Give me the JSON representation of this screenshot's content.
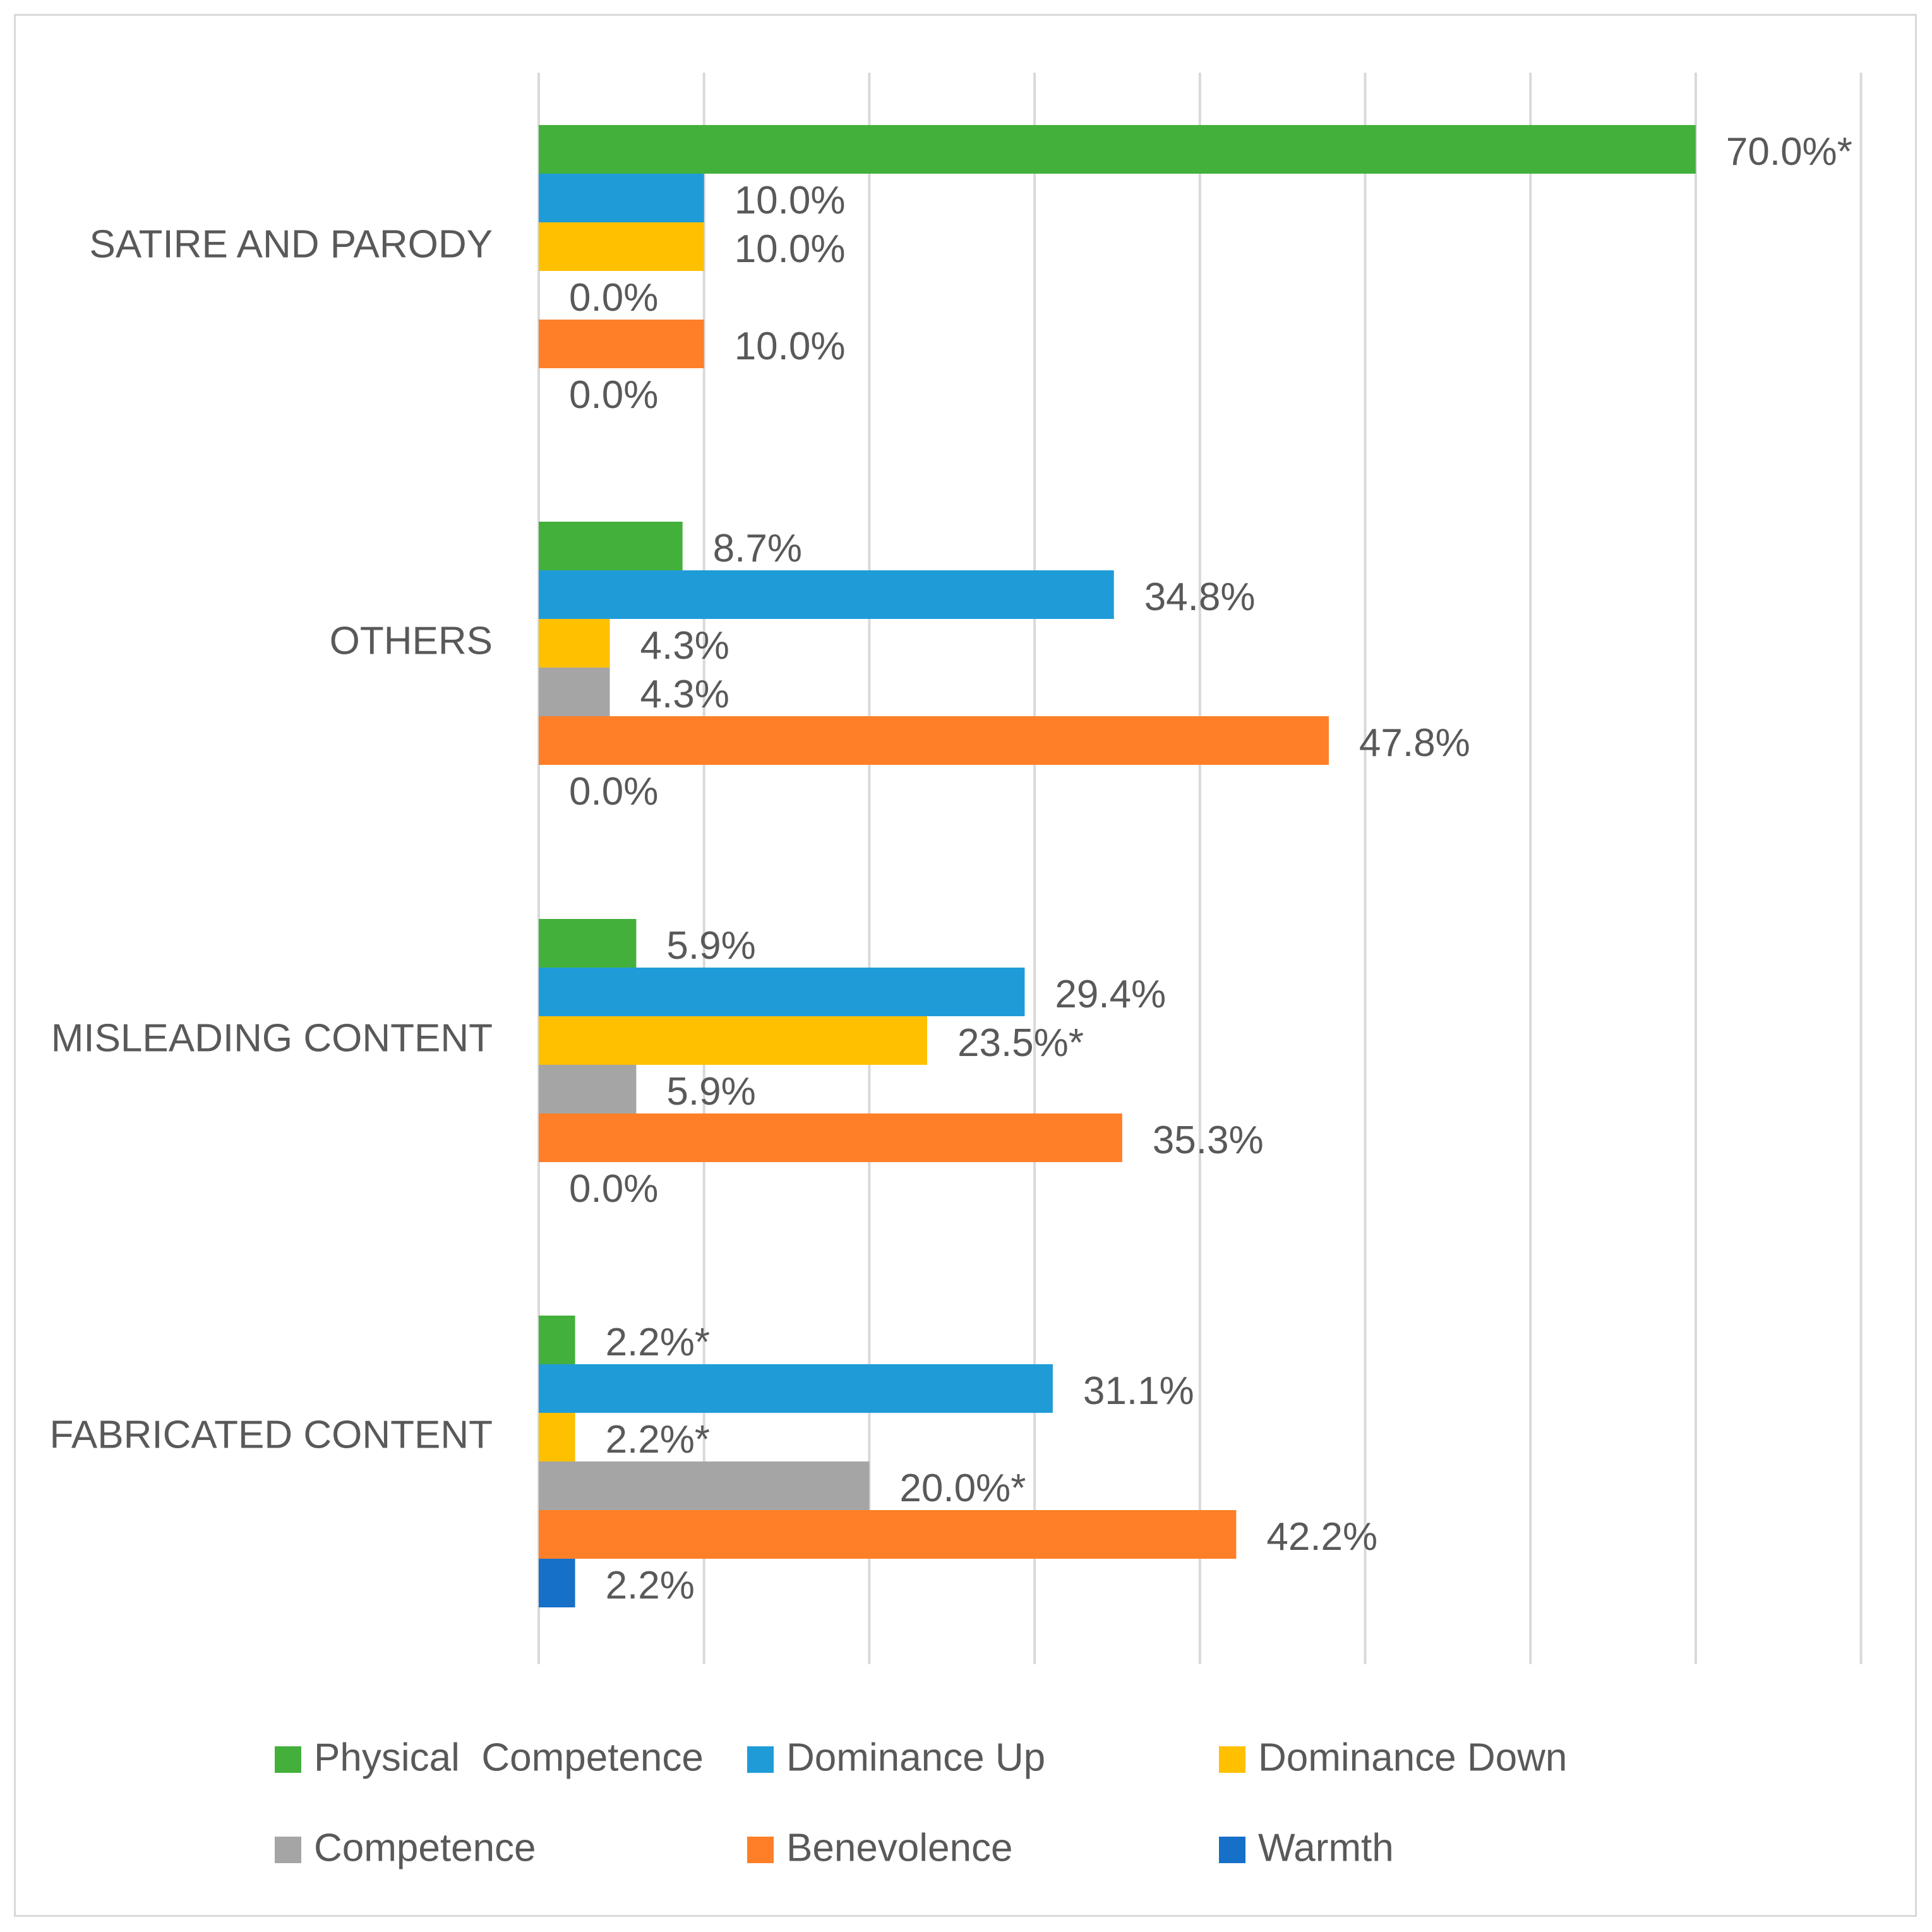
{
  "chart_data": {
    "type": "bar",
    "orientation": "horizontal",
    "categories": [
      "SATIRE AND PARODY",
      "OTHERS",
      "MISLEADING CONTENT",
      "FABRICATED CONTENT"
    ],
    "xlim": [
      0,
      80
    ],
    "grid": true,
    "legend_position": "bottom",
    "series": [
      {
        "name": "Physical  Competence",
        "color": "#43b03c",
        "values": [
          70.0,
          8.7,
          5.9,
          2.2
        ],
        "labels": [
          "70.0%*",
          "8.7%",
          "5.9%",
          "2.2%*"
        ]
      },
      {
        "name": "Dominance Up",
        "color": "#1f9cd8",
        "values": [
          10.0,
          34.8,
          29.4,
          31.1
        ],
        "labels": [
          "10.0%",
          "34.8%",
          "29.4%",
          "31.1%"
        ]
      },
      {
        "name": "Dominance Down",
        "color": "#ffc000",
        "values": [
          10.0,
          4.3,
          23.5,
          2.2
        ],
        "labels": [
          "10.0%",
          "4.3%",
          "23.5%*",
          "2.2%*"
        ]
      },
      {
        "name": "Competence",
        "color": "#a5a5a5",
        "values": [
          0.0,
          4.3,
          5.9,
          20.0
        ],
        "labels": [
          "0.0%",
          "4.3%",
          "5.9%",
          "20.0%*"
        ]
      },
      {
        "name": "Benevolence",
        "color": "#fe7f27",
        "values": [
          10.0,
          47.8,
          35.3,
          42.2
        ],
        "labels": [
          "10.0%",
          "47.8%",
          "35.3%",
          "42.2%"
        ]
      },
      {
        "name": "Warmth",
        "color": "#1670c8",
        "values": [
          0.0,
          0.0,
          0.0,
          2.2
        ],
        "labels": [
          "0.0%",
          "0.0%",
          "0.0%",
          "2.2%"
        ]
      }
    ]
  }
}
